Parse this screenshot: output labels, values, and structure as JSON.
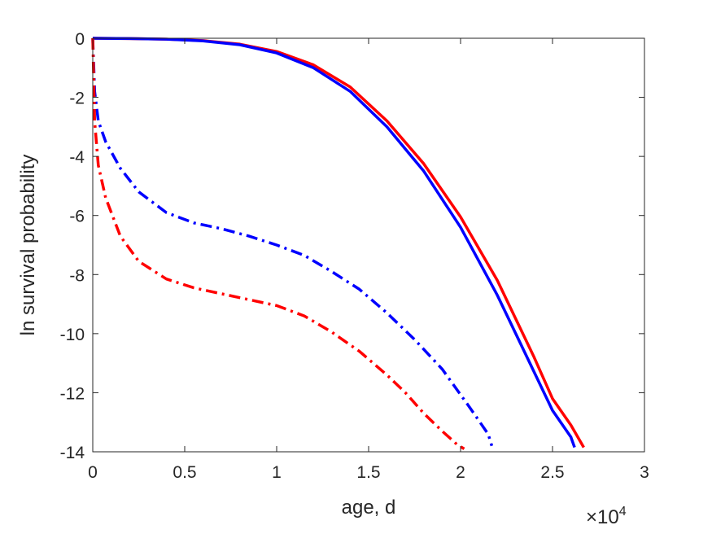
{
  "chart_data": {
    "type": "line",
    "title": "",
    "xlabel": "age, d",
    "ylabel": "ln survival probability",
    "x_exponent_label": {
      "base": "×10",
      "exponent": "4"
    },
    "xlim": [
      0,
      30000
    ],
    "ylim": [
      -14,
      0
    ],
    "xticks": [
      0,
      5000,
      10000,
      15000,
      20000,
      25000,
      30000
    ],
    "xtick_labels": [
      "0",
      "0.5",
      "1",
      "1.5",
      "2",
      "2.5",
      "3"
    ],
    "yticks": [
      0,
      -2,
      -4,
      -6,
      -8,
      -10,
      -12,
      -14
    ],
    "ytick_labels": [
      "0",
      "-2",
      "-4",
      "-6",
      "-8",
      "-10",
      "-12",
      "-14"
    ],
    "grid": false,
    "legend": "none",
    "series": [
      {
        "color": "#ff0000",
        "dash": "solid",
        "x": [
          0,
          2000,
          4000,
          6000,
          8000,
          10000,
          12000,
          14000,
          16000,
          18000,
          20000,
          22000,
          24000,
          25000,
          26000,
          26700
        ],
        "y": [
          0,
          -0.01,
          -0.03,
          -0.08,
          -0.2,
          -0.45,
          -0.9,
          -1.65,
          -2.8,
          -4.25,
          -6.05,
          -8.2,
          -10.8,
          -12.2,
          -13.1,
          -13.85
        ]
      },
      {
        "color": "#0000ff",
        "dash": "solid",
        "x": [
          0,
          2000,
          4000,
          6000,
          8000,
          10000,
          12000,
          14000,
          16000,
          18000,
          20000,
          22000,
          24000,
          25000,
          26000,
          26200
        ],
        "y": [
          0,
          -0.01,
          -0.03,
          -0.09,
          -0.22,
          -0.5,
          -1.0,
          -1.8,
          -3.0,
          -4.5,
          -6.4,
          -8.7,
          -11.3,
          -12.6,
          -13.5,
          -13.85
        ]
      },
      {
        "color": "#0000ff",
        "dash": "dashdot",
        "x": [
          0,
          100,
          300,
          700,
          1500,
          2500,
          4000,
          5500,
          7000,
          8500,
          10000,
          11500,
          13000,
          14500,
          16000,
          17500,
          19000,
          20500,
          21500,
          21700
        ],
        "y": [
          0,
          -1.8,
          -2.8,
          -3.5,
          -4.4,
          -5.2,
          -5.9,
          -6.25,
          -6.45,
          -6.7,
          -7.0,
          -7.35,
          -7.9,
          -8.5,
          -9.3,
          -10.2,
          -11.2,
          -12.5,
          -13.4,
          -13.8
        ]
      },
      {
        "color": "#ff0000",
        "dash": "dashdot",
        "x": [
          0,
          100,
          300,
          700,
          1500,
          2500,
          4000,
          5500,
          7000,
          8500,
          10000,
          11500,
          13000,
          14500,
          16000,
          17000,
          18000,
          19000,
          19800,
          20200
        ],
        "y": [
          0,
          -2.8,
          -4.3,
          -5.4,
          -6.7,
          -7.55,
          -8.15,
          -8.45,
          -8.65,
          -8.85,
          -9.05,
          -9.4,
          -9.95,
          -10.6,
          -11.4,
          -12.0,
          -12.7,
          -13.3,
          -13.75,
          -13.9
        ]
      }
    ]
  }
}
